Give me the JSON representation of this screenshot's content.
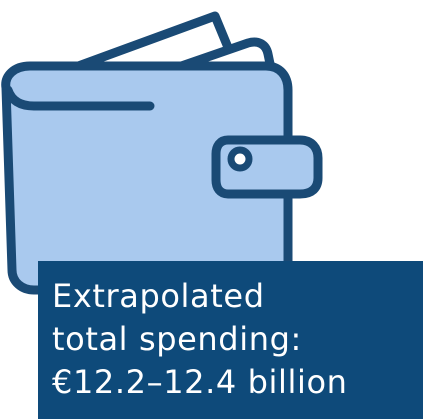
{
  "illustration": {
    "icon": "wallet-icon",
    "colors": {
      "outline": "#1a4a75",
      "wallet_fill": "#a9c9ee",
      "paper_fill": "#ffffff"
    }
  },
  "info_box": {
    "background": "#0e4a7a",
    "text_color": "#ffffff",
    "lines": [
      "Extrapolated",
      "total spending:",
      "€12.2–12.4 billion"
    ]
  }
}
